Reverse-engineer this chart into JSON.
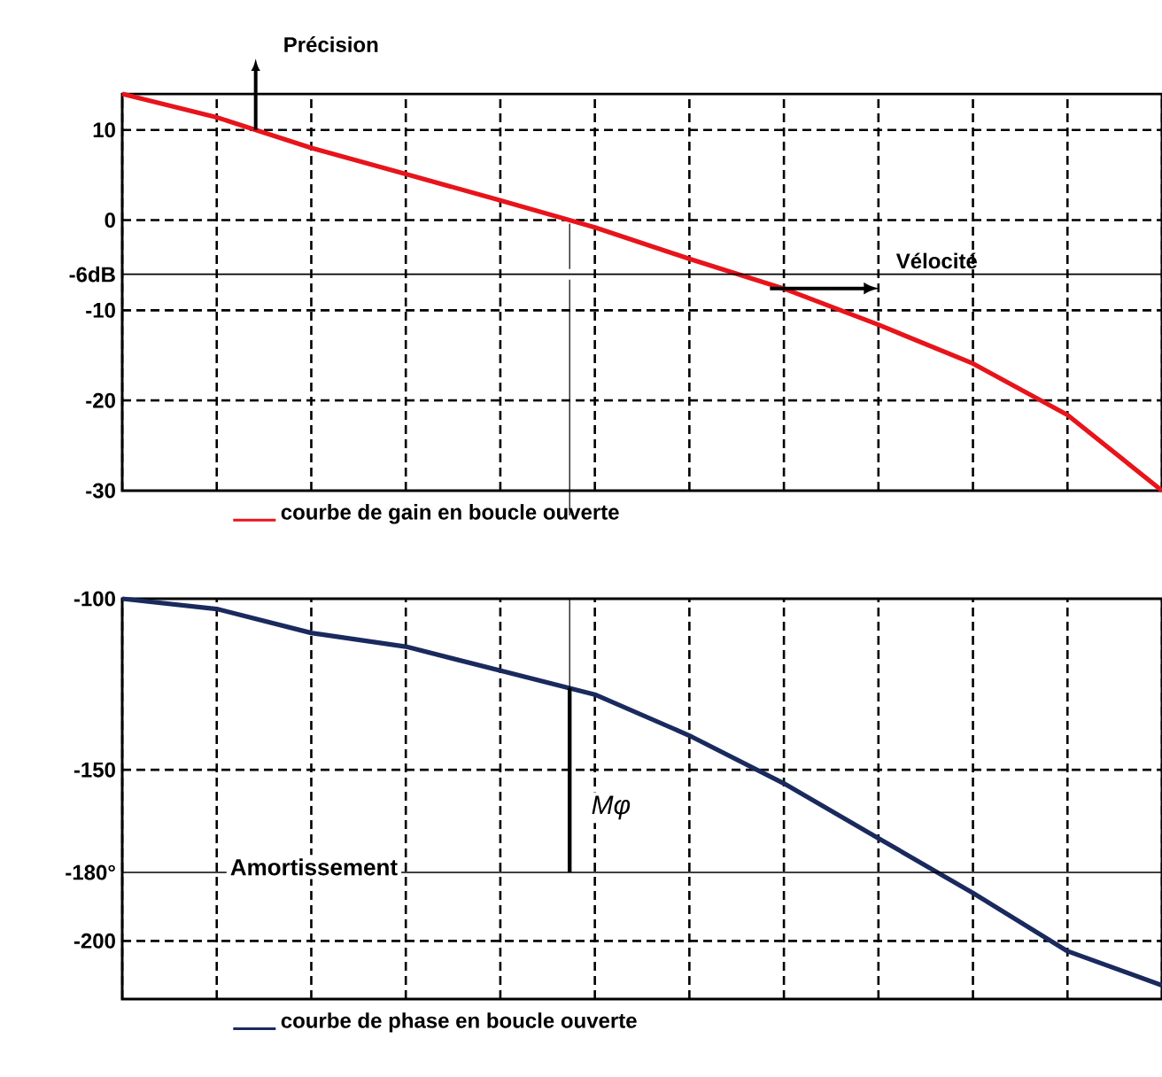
{
  "chart_data": [
    {
      "type": "line",
      "categories": [
        null,
        null,
        null,
        null,
        null,
        null,
        null,
        null,
        null,
        null,
        null,
        null
      ],
      "series": [
        {
          "name": "courbe de gain en boucle ouverte",
          "color": "#e8141b",
          "values": [
            14,
            11.4,
            8,
            5.1,
            2.2,
            -0.8,
            -4.3,
            -7.6,
            -11.6,
            -15.9,
            -21.6,
            -30
          ]
        }
      ],
      "ylim": [
        -30,
        14
      ],
      "yticks": [
        -30,
        -20,
        -10,
        {
          "value": -6,
          "label": "-6dB"
        },
        0,
        10
      ],
      "grid": true,
      "legend": "bottom",
      "tick_labels": "y",
      "marker": "none",
      "line_style": "solid",
      "ref_lines": [
        {
          "axis": "y",
          "value": -6,
          "color": "#000000",
          "line_style": "solid"
        }
      ],
      "annotations": [
        "Précision",
        "Vélocité"
      ]
    },
    {
      "type": "line",
      "categories": [
        null,
        null,
        null,
        null,
        null,
        null,
        null,
        null,
        null,
        null,
        null,
        null
      ],
      "series": [
        {
          "name": "courbe de phase en boucle ouverte",
          "color": "#1a2a5e",
          "values": [
            -100,
            -103,
            -110,
            -114,
            -121,
            -128,
            -140,
            -154,
            -170,
            -186,
            -203,
            -213
          ]
        }
      ],
      "ylim": [
        -217,
        -100
      ],
      "yticks": [
        -200,
        {
          "value": -180,
          "label": "-180°"
        },
        -150,
        -100
      ],
      "grid": true,
      "legend": "bottom",
      "tick_labels": "y",
      "marker": "none",
      "line_style": "solid",
      "ref_lines": [
        {
          "axis": "y",
          "value": -180,
          "color": "#000000",
          "line_style": "solid"
        }
      ],
      "annotations": [
        "Amortissement",
        "Mφ"
      ]
    }
  ]
}
